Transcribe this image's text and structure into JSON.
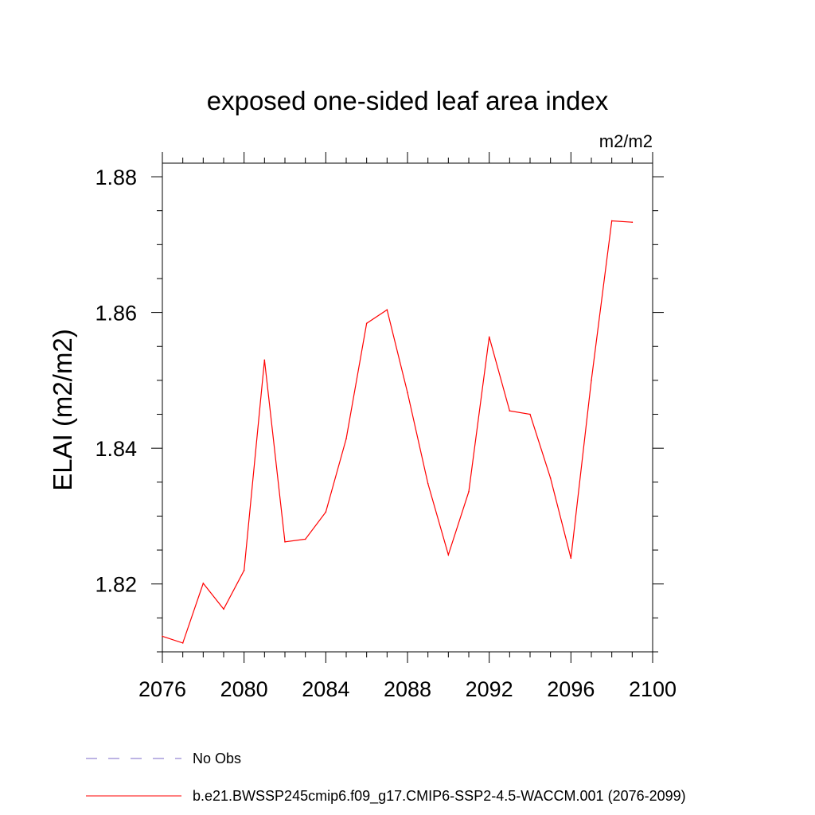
{
  "chart_data": {
    "type": "line",
    "title": "exposed one-sided leaf area index",
    "units_label": "m2/m2",
    "ylabel": "ELAI  (m2/m2)",
    "xlabel": "",
    "xlim": [
      2076,
      2100
    ],
    "ylim": [
      1.81,
      1.882
    ],
    "x_ticks": [
      2076,
      2080,
      2084,
      2088,
      2092,
      2096,
      2100
    ],
    "x_minor_step": 1,
    "y_ticks": [
      1.82,
      1.84,
      1.86,
      1.88
    ],
    "y_minor_step": 0.005,
    "grid": false,
    "legend_position": "bottom",
    "series": [
      {
        "name": "b.e21.BWSSP245cmip6.f09_g17.CMIP6-SSP2-4.5-WACCM.001 (2076-2099)",
        "color": "#ff0000",
        "dash": "solid",
        "x": [
          2076,
          2077,
          2078,
          2079,
          2080,
          2081,
          2082,
          2083,
          2084,
          2085,
          2086,
          2087,
          2088,
          2089,
          2090,
          2091,
          2092,
          2093,
          2094,
          2095,
          2096,
          2097,
          2098,
          2099
        ],
        "y": [
          1.8123,
          1.8113,
          1.8201,
          1.8163,
          1.822,
          1.853,
          1.8262,
          1.8266,
          1.8306,
          1.8414,
          1.8584,
          1.8604,
          1.8482,
          1.8348,
          1.8243,
          1.8336,
          1.8564,
          1.8455,
          1.845,
          1.8356,
          1.8238,
          1.85,
          1.8735,
          1.8733
        ]
      }
    ],
    "legend": [
      {
        "label": "No Obs",
        "color": "#7b68c8",
        "dash": "dashed"
      },
      {
        "label": "b.e21.BWSSP245cmip6.f09_g17.CMIP6-SSP2-4.5-WACCM.001 (2076-2099)",
        "color": "#ff0000",
        "dash": "solid"
      }
    ]
  }
}
